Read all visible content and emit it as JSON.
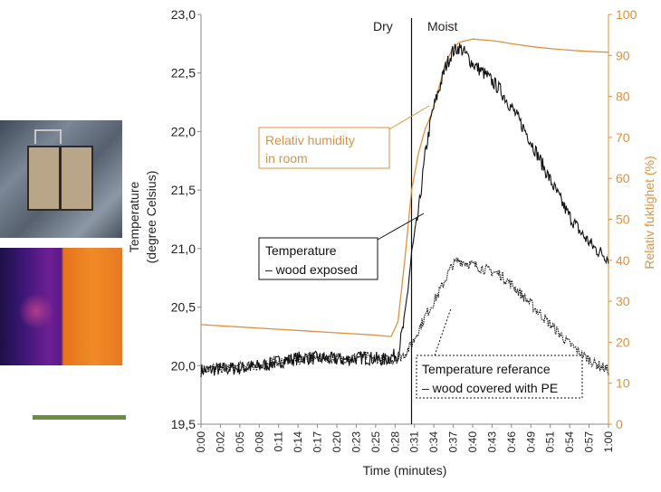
{
  "chart_data": {
    "type": "line",
    "title": "",
    "xlabel": "Time (minutes)",
    "ylabel": [
      "Temperature",
      "(degree Celsius)"
    ],
    "ylabel_right": "Relativ fuktighet (%)",
    "ylim": [
      19.5,
      23.0
    ],
    "ylim_right": [
      0,
      100
    ],
    "x_unit_range_minutes": [
      0,
      60
    ],
    "y_ticks": [
      "19,5",
      "20,0",
      "20,5",
      "21,0",
      "21,5",
      "22,0",
      "22,5",
      "23,0"
    ],
    "y_ticks_right": [
      "0",
      "10",
      "20",
      "30",
      "40",
      "50",
      "60",
      "70",
      "80",
      "90",
      "100"
    ],
    "x_ticks": [
      "0:00",
      "0:02",
      "0:05",
      "0:08",
      "0:11",
      "0:14",
      "0:17",
      "0:20",
      "0:23",
      "0:25",
      "0:28",
      "0:31",
      "0:34",
      "0:37",
      "0:40",
      "0:43",
      "0:46",
      "0:49",
      "0:51",
      "0:54",
      "0:57",
      "1:00"
    ],
    "phases": [
      {
        "label": "Dry"
      },
      {
        "label": "Moist"
      }
    ],
    "phase_boundary_minute": 31,
    "grid": false,
    "series": [
      {
        "name": "Relativ humidity in room",
        "axis": "right",
        "color": "#e1913d",
        "style": "solid",
        "x": [
          0,
          5,
          10,
          15,
          20,
          25,
          28,
          29,
          30,
          31,
          32,
          33,
          34,
          35,
          36,
          37,
          38,
          40,
          43,
          46,
          49,
          52,
          55,
          58,
          60
        ],
        "y": [
          24.3,
          23.8,
          23.3,
          22.8,
          22.3,
          21.8,
          21.4,
          25,
          40,
          57,
          66,
          72,
          76,
          82,
          88,
          91.5,
          93.2,
          94,
          93.6,
          92.8,
          92.1,
          91.6,
          91.2,
          90.9,
          90.8
        ]
      },
      {
        "name": "Temperature – wood exposed",
        "axis": "left",
        "color": "#111111",
        "style": "solid",
        "x": [
          0,
          3,
          6,
          9,
          12,
          15,
          18,
          21,
          24,
          27,
          29,
          30,
          31,
          32,
          33,
          34,
          35,
          36,
          37,
          38,
          39,
          40,
          42,
          44,
          46,
          48,
          50,
          52,
          54,
          56,
          58,
          60
        ],
        "y": [
          19.96,
          19.97,
          19.98,
          20.0,
          20.04,
          20.07,
          20.06,
          20.05,
          20.07,
          20.05,
          20.1,
          20.4,
          20.95,
          21.3,
          21.8,
          22.15,
          22.35,
          22.55,
          22.68,
          22.72,
          22.66,
          22.58,
          22.48,
          22.36,
          22.18,
          21.98,
          21.75,
          21.52,
          21.3,
          21.13,
          21.0,
          20.92
        ]
      },
      {
        "name": "Temperature referance – wood covered with PE",
        "axis": "left",
        "color": "#111111",
        "style": "dotted",
        "x": [
          0,
          3,
          6,
          9,
          12,
          15,
          18,
          21,
          24,
          27,
          29,
          30,
          31,
          32,
          33,
          34,
          35,
          36,
          37,
          38,
          40,
          42,
          44,
          46,
          48,
          50,
          52,
          54,
          56,
          58,
          60
        ],
        "y": [
          19.97,
          19.98,
          19.99,
          20.0,
          20.05,
          20.06,
          20.07,
          20.06,
          20.08,
          20.05,
          20.06,
          20.1,
          20.18,
          20.3,
          20.42,
          20.52,
          20.62,
          20.74,
          20.86,
          20.9,
          20.86,
          20.82,
          20.78,
          20.68,
          20.56,
          20.44,
          20.32,
          20.2,
          20.1,
          20.02,
          19.96
        ]
      }
    ]
  },
  "annotations": {
    "humidity_label_line1": "Relativ humidity",
    "humidity_label_line2": "in room",
    "exposed_label_line1": "Temperature",
    "exposed_label_line2": "– wood exposed",
    "covered_label_line1": "Temperature referance",
    "covered_label_line2": "– wood covered with PE"
  }
}
